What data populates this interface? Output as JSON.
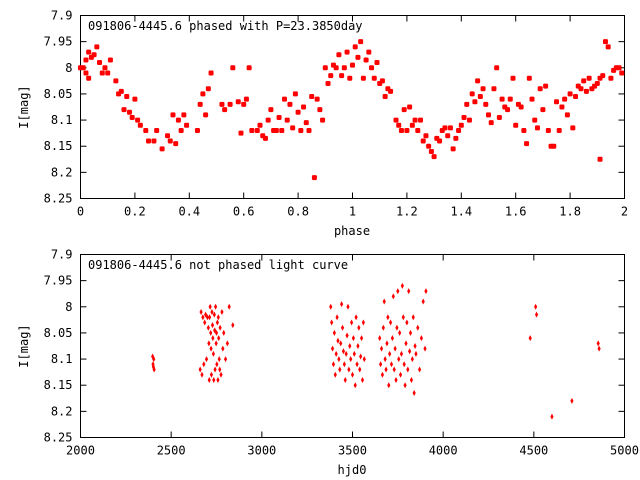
{
  "chart_data": [
    {
      "type": "scatter",
      "title": "091806-4445.6 phased with P=23.3850day",
      "xlabel": "phase",
      "ylabel": "I[mag]",
      "xlim": [
        0,
        2
      ],
      "ylim": [
        8.25,
        7.9
      ],
      "y_reversed": true,
      "xticks": [
        "0",
        "0.2",
        "0.4",
        "0.6",
        "0.8",
        "1",
        "1.2",
        "1.4",
        "1.6",
        "1.8",
        "2"
      ],
      "yticks": [
        "7.9",
        "7.95",
        "8",
        "8.05",
        "8.1",
        "8.15",
        "8.2",
        "8.25"
      ],
      "grid": false,
      "marker": "filled-square",
      "color": "#ff0000",
      "points": [
        [
          0.0,
          8.0
        ],
        [
          0.01,
          8.0
        ],
        [
          0.02,
          7.985
        ],
        [
          0.02,
          8.01
        ],
        [
          0.03,
          7.97
        ],
        [
          0.03,
          8.02
        ],
        [
          0.04,
          7.98
        ],
        [
          0.05,
          7.975
        ],
        [
          0.06,
          7.96
        ],
        [
          0.07,
          7.99
        ],
        [
          0.08,
          8.01
        ],
        [
          0.09,
          8.0
        ],
        [
          0.1,
          8.01
        ],
        [
          0.11,
          7.985
        ],
        [
          0.13,
          8.025
        ],
        [
          0.14,
          8.05
        ],
        [
          0.15,
          8.045
        ],
        [
          0.16,
          8.08
        ],
        [
          0.17,
          8.055
        ],
        [
          0.18,
          8.085
        ],
        [
          0.19,
          8.095
        ],
        [
          0.2,
          8.06
        ],
        [
          0.21,
          8.1
        ],
        [
          0.22,
          8.11
        ],
        [
          0.24,
          8.12
        ],
        [
          0.25,
          8.14
        ],
        [
          0.27,
          8.14
        ],
        [
          0.28,
          8.12
        ],
        [
          0.3,
          8.155
        ],
        [
          0.32,
          8.13
        ],
        [
          0.33,
          8.14
        ],
        [
          0.34,
          8.09
        ],
        [
          0.35,
          8.145
        ],
        [
          0.36,
          8.1
        ],
        [
          0.37,
          8.12
        ],
        [
          0.38,
          8.09
        ],
        [
          0.39,
          8.11
        ],
        [
          0.43,
          8.12
        ],
        [
          0.44,
          8.07
        ],
        [
          0.45,
          8.05
        ],
        [
          0.46,
          8.09
        ],
        [
          0.47,
          8.04
        ],
        [
          0.48,
          8.01
        ],
        [
          0.52,
          8.07
        ],
        [
          0.53,
          8.08
        ],
        [
          0.55,
          8.07
        ],
        [
          0.56,
          8.0
        ],
        [
          0.58,
          8.065
        ],
        [
          0.59,
          8.125
        ],
        [
          0.6,
          8.07
        ],
        [
          0.61,
          8.06
        ],
        [
          0.62,
          8.0
        ],
        [
          0.63,
          8.12
        ],
        [
          0.65,
          8.12
        ],
        [
          0.66,
          8.11
        ],
        [
          0.67,
          8.13
        ],
        [
          0.68,
          8.135
        ],
        [
          0.69,
          8.1
        ],
        [
          0.7,
          8.08
        ],
        [
          0.71,
          8.12
        ],
        [
          0.72,
          8.12
        ],
        [
          0.73,
          8.095
        ],
        [
          0.74,
          8.12
        ],
        [
          0.75,
          8.06
        ],
        [
          0.76,
          8.1
        ],
        [
          0.77,
          8.07
        ],
        [
          0.78,
          8.115
        ],
        [
          0.79,
          8.05
        ],
        [
          0.8,
          8.085
        ],
        [
          0.81,
          8.12
        ],
        [
          0.82,
          8.075
        ],
        [
          0.83,
          8.105
        ],
        [
          0.84,
          8.12
        ],
        [
          0.85,
          8.055
        ],
        [
          0.86,
          8.21
        ],
        [
          0.87,
          8.06
        ],
        [
          0.88,
          8.08
        ],
        [
          0.89,
          8.1
        ],
        [
          0.9,
          8.0
        ],
        [
          0.91,
          8.03
        ],
        [
          0.92,
          8.015
        ],
        [
          0.93,
          7.995
        ],
        [
          0.94,
          8.0
        ],
        [
          0.95,
          7.975
        ],
        [
          0.96,
          8.015
        ],
        [
          0.97,
          8.0
        ],
        [
          0.98,
          7.97
        ],
        [
          0.99,
          8.02
        ],
        [
          1.0,
          7.995
        ],
        [
          1.01,
          7.96
        ],
        [
          1.02,
          7.98
        ],
        [
          1.03,
          7.95
        ],
        [
          1.04,
          8.02
        ],
        [
          1.05,
          7.985
        ],
        [
          1.06,
          7.97
        ],
        [
          1.07,
          8.0
        ],
        [
          1.08,
          8.02
        ],
        [
          1.09,
          7.99
        ],
        [
          1.1,
          8.03
        ],
        [
          1.11,
          8.025
        ],
        [
          1.12,
          8.055
        ],
        [
          1.13,
          8.04
        ],
        [
          1.14,
          8.045
        ],
        [
          1.16,
          8.1
        ],
        [
          1.17,
          8.11
        ],
        [
          1.18,
          8.12
        ],
        [
          1.19,
          8.08
        ],
        [
          1.2,
          8.12
        ],
        [
          1.21,
          8.075
        ],
        [
          1.22,
          8.11
        ],
        [
          1.23,
          8.1
        ],
        [
          1.24,
          8.12
        ],
        [
          1.25,
          8.1
        ],
        [
          1.26,
          8.14
        ],
        [
          1.27,
          8.13
        ],
        [
          1.28,
          8.15
        ],
        [
          1.29,
          8.16
        ],
        [
          1.3,
          8.17
        ],
        [
          1.31,
          8.135
        ],
        [
          1.32,
          8.14
        ],
        [
          1.33,
          8.12
        ],
        [
          1.34,
          8.115
        ],
        [
          1.35,
          8.13
        ],
        [
          1.36,
          8.115
        ],
        [
          1.37,
          8.155
        ],
        [
          1.38,
          8.135
        ],
        [
          1.39,
          8.12
        ],
        [
          1.4,
          8.11
        ],
        [
          1.41,
          8.095
        ],
        [
          1.42,
          8.07
        ],
        [
          1.43,
          8.1
        ],
        [
          1.44,
          8.05
        ],
        [
          1.45,
          8.065
        ],
        [
          1.46,
          8.025
        ],
        [
          1.47,
          8.055
        ],
        [
          1.48,
          8.04
        ],
        [
          1.49,
          8.07
        ],
        [
          1.5,
          8.09
        ],
        [
          1.51,
          8.105
        ],
        [
          1.52,
          8.04
        ],
        [
          1.53,
          8.0
        ],
        [
          1.54,
          8.095
        ],
        [
          1.55,
          8.06
        ],
        [
          1.56,
          8.075
        ],
        [
          1.57,
          8.08
        ],
        [
          1.58,
          8.06
        ],
        [
          1.59,
          8.02
        ],
        [
          1.6,
          8.11
        ],
        [
          1.61,
          8.07
        ],
        [
          1.62,
          8.075
        ],
        [
          1.63,
          8.12
        ],
        [
          1.64,
          8.145
        ],
        [
          1.65,
          8.02
        ],
        [
          1.66,
          8.06
        ],
        [
          1.67,
          8.1
        ],
        [
          1.68,
          8.115
        ],
        [
          1.69,
          8.04
        ],
        [
          1.7,
          8.08
        ],
        [
          1.71,
          8.035
        ],
        [
          1.72,
          8.12
        ],
        [
          1.73,
          8.15
        ],
        [
          1.74,
          8.15
        ],
        [
          1.75,
          8.065
        ],
        [
          1.76,
          8.12
        ],
        [
          1.77,
          8.075
        ],
        [
          1.78,
          8.06
        ],
        [
          1.79,
          8.09
        ],
        [
          1.8,
          8.05
        ],
        [
          1.81,
          8.115
        ],
        [
          1.82,
          8.055
        ],
        [
          1.83,
          8.035
        ],
        [
          1.84,
          8.04
        ],
        [
          1.85,
          8.025
        ],
        [
          1.86,
          8.045
        ],
        [
          1.87,
          8.02
        ],
        [
          1.88,
          8.04
        ],
        [
          1.89,
          8.035
        ],
        [
          1.9,
          8.03
        ],
        [
          1.91,
          8.02
        ],
        [
          1.92,
          8.015
        ],
        [
          1.93,
          7.95
        ],
        [
          1.94,
          7.96
        ],
        [
          1.95,
          8.02
        ],
        [
          1.96,
          8.005
        ],
        [
          1.97,
          8.0
        ],
        [
          1.98,
          8.0
        ],
        [
          1.99,
          8.01
        ],
        [
          1.91,
          8.175
        ]
      ]
    },
    {
      "type": "scatter",
      "title": "091806-4445.6 not phased light curve",
      "xlabel": "hjd0",
      "ylabel": "I[mag]",
      "xlim": [
        2000,
        5000
      ],
      "ylim": [
        8.25,
        7.9
      ],
      "y_reversed": true,
      "xticks": [
        "2000",
        "2500",
        "3000",
        "3500",
        "4000",
        "4500",
        "5000"
      ],
      "yticks": [
        "7.9",
        "7.95",
        "8",
        "8.05",
        "8.1",
        "8.15",
        "8.2",
        "8.25"
      ],
      "grid": false,
      "marker": "small-diamond",
      "color": "#ff0000",
      "points": [
        [
          2398,
          8.095
        ],
        [
          2400,
          8.11
        ],
        [
          2402,
          8.115
        ],
        [
          2404,
          8.1
        ],
        [
          2406,
          8.12
        ],
        [
          2660,
          8.12
        ],
        [
          2665,
          8.01
        ],
        [
          2670,
          8.13
        ],
        [
          2675,
          8.02
        ],
        [
          2680,
          8.11
        ],
        [
          2685,
          8.03
        ],
        [
          2690,
          8.015
        ],
        [
          2695,
          8.1
        ],
        [
          2700,
          8.02
        ],
        [
          2705,
          8.04
        ],
        [
          2708,
          8.07
        ],
        [
          2710,
          8.14
        ],
        [
          2712,
          8.02
        ],
        [
          2715,
          8.0
        ],
        [
          2718,
          8.05
        ],
        [
          2720,
          8.08
        ],
        [
          2722,
          8.13
        ],
        [
          2725,
          8.01
        ],
        [
          2728,
          8.035
        ],
        [
          2730,
          8.06
        ],
        [
          2733,
          8.09
        ],
        [
          2735,
          8.14
        ],
        [
          2738,
          8.015
        ],
        [
          2740,
          8.045
        ],
        [
          2742,
          8.12
        ],
        [
          2745,
          8.0
        ],
        [
          2748,
          8.07
        ],
        [
          2750,
          8.05
        ],
        [
          2752,
          8.11
        ],
        [
          2755,
          8.03
        ],
        [
          2758,
          8.14
        ],
        [
          2760,
          8.02
        ],
        [
          2762,
          8.06
        ],
        [
          2765,
          8.1
        ],
        [
          2768,
          8.12
        ],
        [
          2770,
          8.04
        ],
        [
          2775,
          8.13
        ],
        [
          2780,
          8.01
        ],
        [
          2785,
          8.08
        ],
        [
          2790,
          8.05
        ],
        [
          2800,
          8.1
        ],
        [
          2810,
          8.07
        ],
        [
          2820,
          8.0
        ],
        [
          2840,
          8.035
        ],
        [
          3380,
          8.0
        ],
        [
          3385,
          8.03
        ],
        [
          3390,
          8.08
        ],
        [
          3395,
          8.11
        ],
        [
          3400,
          8.05
        ],
        [
          3405,
          8.13
        ],
        [
          3410,
          8.09
        ],
        [
          3415,
          8.02
        ],
        [
          3420,
          8.065
        ],
        [
          3425,
          8.1
        ],
        [
          3430,
          8.12
        ],
        [
          3435,
          8.07
        ],
        [
          3440,
          7.995
        ],
        [
          3445,
          8.04
        ],
        [
          3450,
          8.085
        ],
        [
          3455,
          8.11
        ],
        [
          3460,
          8.14
        ],
        [
          3465,
          8.09
        ],
        [
          3470,
          8.055
        ],
        [
          3475,
          8.0
        ],
        [
          3480,
          8.12
        ],
        [
          3485,
          8.075
        ],
        [
          3490,
          8.1
        ],
        [
          3495,
          8.03
        ],
        [
          3500,
          8.13
        ],
        [
          3505,
          8.06
        ],
        [
          3510,
          8.09
        ],
        [
          3515,
          8.15
        ],
        [
          3520,
          8.02
        ],
        [
          3525,
          8.11
        ],
        [
          3530,
          8.075
        ],
        [
          3535,
          8.04
        ],
        [
          3540,
          8.12
        ],
        [
          3545,
          8.095
        ],
        [
          3550,
          8.06
        ],
        [
          3555,
          8.14
        ],
        [
          3560,
          8.03
        ],
        [
          3565,
          8.1
        ],
        [
          3650,
          8.06
        ],
        [
          3655,
          8.11
        ],
        [
          3660,
          8.08
        ],
        [
          3665,
          8.13
        ],
        [
          3670,
          8.04
        ],
        [
          3675,
          7.99
        ],
        [
          3680,
          8.1
        ],
        [
          3685,
          8.12
        ],
        [
          3690,
          8.07
        ],
        [
          3695,
          8.02
        ],
        [
          3700,
          8.15
        ],
        [
          3705,
          8.09
        ],
        [
          3710,
          8.03
        ],
        [
          3715,
          8.11
        ],
        [
          3720,
          8.06
        ],
        [
          3725,
          7.98
        ],
        [
          3730,
          8.12
        ],
        [
          3735,
          8.08
        ],
        [
          3740,
          8.14
        ],
        [
          3745,
          8.04
        ],
        [
          3750,
          7.97
        ],
        [
          3755,
          8.1
        ],
        [
          3760,
          8.05
        ],
        [
          3765,
          8.13
        ],
        [
          3770,
          8.09
        ],
        [
          3775,
          7.96
        ],
        [
          3780,
          8.02
        ],
        [
          3785,
          8.11
        ],
        [
          3790,
          8.15
        ],
        [
          3795,
          8.07
        ],
        [
          3800,
          8.03
        ],
        [
          3805,
          8.12
        ],
        [
          3810,
          7.97
        ],
        [
          3815,
          8.085
        ],
        [
          3820,
          8.05
        ],
        [
          3825,
          8.14
        ],
        [
          3830,
          8.1
        ],
        [
          3835,
          8.02
        ],
        [
          3840,
          8.165
        ],
        [
          3845,
          8.075
        ],
        [
          3850,
          8.09
        ],
        [
          3860,
          8.04
        ],
        [
          3870,
          8.12
        ],
        [
          3880,
          8.06
        ],
        [
          3890,
          7.99
        ],
        [
          3900,
          8.08
        ],
        [
          3905,
          7.97
        ],
        [
          4480,
          8.06
        ],
        [
          4510,
          8.0
        ],
        [
          4515,
          8.015
        ],
        [
          4600,
          8.21
        ],
        [
          4710,
          8.18
        ],
        [
          4855,
          8.07
        ],
        [
          4860,
          8.08
        ]
      ]
    }
  ]
}
